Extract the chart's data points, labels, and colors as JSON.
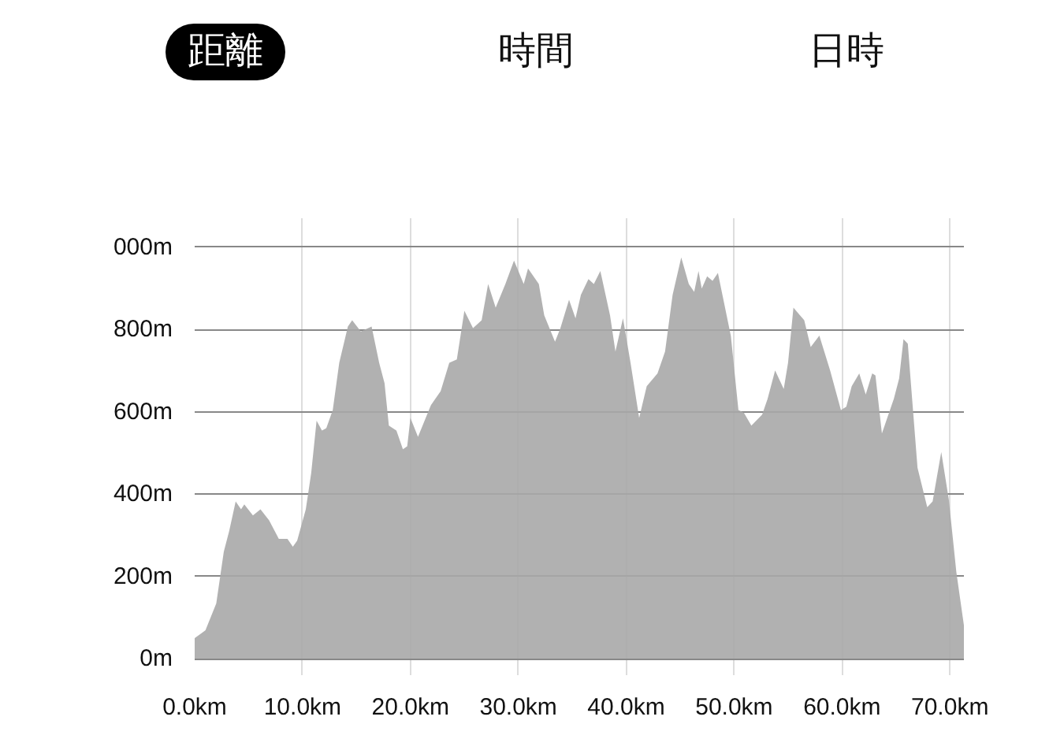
{
  "chart_data": {
    "type": "area",
    "annotations": [
      "距離",
      "時間",
      "日時"
    ],
    "x": [
      0,
      1.0,
      2.0,
      2.7,
      3.2,
      3.8,
      4.3,
      4.6,
      5.4,
      6.1,
      6.9,
      7.8,
      8.6,
      9.1,
      9.5,
      10.3,
      10.8,
      11.3,
      11.8,
      12.2,
      12.8,
      13.4,
      14.2,
      14.6,
      15.4,
      16.4,
      17.1,
      17.6,
      18.0,
      18.7,
      19.3,
      19.7,
      20.0,
      20.7,
      21.9,
      22.8,
      23.6,
      24.3,
      25.0,
      25.8,
      26.6,
      27.2,
      27.9,
      28.8,
      29.6,
      30.5,
      30.9,
      31.9,
      32.4,
      33.4,
      33.9,
      34.7,
      35.3,
      35.8,
      36.5,
      37.0,
      37.6,
      38.5,
      39.0,
      39.7,
      40.4,
      41.2,
      41.9,
      42.9,
      43.6,
      44.3,
      45.1,
      45.8,
      46.3,
      46.7,
      47.0,
      47.5,
      48.0,
      48.5,
      49.7,
      50.4,
      50.9,
      51.6,
      52.6,
      53.1,
      53.8,
      54.6,
      55.0,
      55.5,
      56.5,
      57.1,
      57.9,
      58.9,
      59.9,
      60.4,
      60.9,
      61.6,
      62.2,
      62.8,
      63.1,
      63.7,
      64.8,
      65.3,
      65.7,
      66.1,
      67.0,
      67.9,
      68.4,
      69.2,
      69.9,
      70.6,
      71.3
    ],
    "series": [
      {
        "color": "#a8a8a8",
        "values": [
          50,
          69,
          134,
          260,
          310,
          382,
          363,
          375,
          348,
          363,
          336,
          291,
          291,
          272,
          287,
          363,
          451,
          578,
          554,
          560,
          604,
          719,
          807,
          822,
          795,
          807,
          719,
          669,
          566,
          554,
          509,
          516,
          585,
          539,
          616,
          650,
          719,
          727,
          845,
          803,
          822,
          910,
          853,
          910,
          967,
          910,
          948,
          910,
          834,
          770,
          803,
          872,
          827,
          884,
          922,
          910,
          942,
          834,
          746,
          827,
          719,
          585,
          662,
          693,
          746,
          884,
          975,
          910,
          891,
          942,
          899,
          929,
          918,
          937,
          784,
          604,
          598,
          566,
          593,
          631,
          700,
          655,
          719,
          853,
          822,
          757,
          785,
          700,
          604,
          612,
          662,
          693,
          642,
          693,
          688,
          547,
          631,
          681,
          776,
          765,
          464,
          368,
          382,
          502,
          387,
          210,
          81
        ]
      }
    ],
    "xlim": [
      0,
      71.3
    ],
    "ylim": [
      -40,
      1070
    ],
    "xticks": [
      {
        "value": 0,
        "label": "0.0km"
      },
      {
        "value": 10,
        "label": "10.0km"
      },
      {
        "value": 20,
        "label": "20.0km"
      },
      {
        "value": 30,
        "label": "30.0km"
      },
      {
        "value": 40,
        "label": "40.0km"
      },
      {
        "value": 50,
        "label": "50.0km"
      },
      {
        "value": 60,
        "label": "60.0km"
      },
      {
        "value": 70,
        "label": "70.0km"
      }
    ],
    "yticks": [
      {
        "value": 0,
        "label": "0m"
      },
      {
        "value": 200,
        "label": "200m"
      },
      {
        "value": 400,
        "label": "400m"
      },
      {
        "value": 600,
        "label": "600m"
      },
      {
        "value": 800,
        "label": "800m"
      },
      {
        "value": 1000,
        "label": "000m"
      }
    ],
    "grid": true
  }
}
